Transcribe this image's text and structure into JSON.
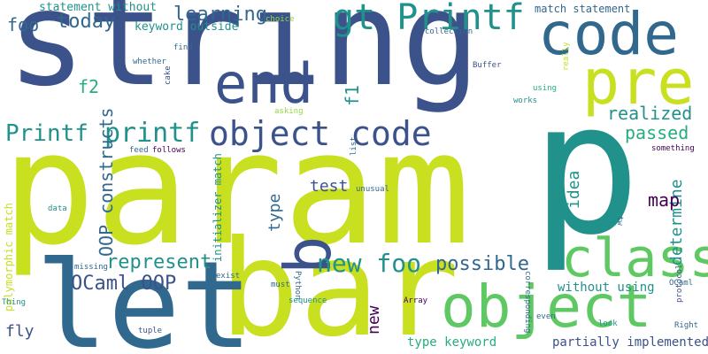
{
  "words": [
    "string",
    "param",
    "bar",
    "let",
    "p",
    "code",
    "end",
    "pre",
    "object",
    "class",
    "gt Printf",
    "b",
    "object code",
    "Printf",
    "printf",
    "new foo",
    "possible",
    "represent",
    "OCaml OOP",
    "learning",
    "today",
    "foo",
    "f1",
    "f2",
    "OOP constructs",
    "realized",
    "passed",
    "determine",
    "map",
    "idea",
    "type",
    "test",
    "new",
    "fly",
    "type keyword",
    "partially implemented",
    "without using",
    "statement without",
    "keyword outside",
    "match statement",
    "initializer match",
    "polymorphic match",
    "choice",
    "find",
    "collection",
    "whether",
    "cake",
    "Buffer",
    "really",
    "using",
    "works",
    "asking",
    "something",
    "feed",
    "follows",
    "list",
    "unusual",
    "data",
    "Python",
    "missing",
    "exist",
    "corresponding",
    "sequence",
    "Array",
    "even",
    "Thing",
    "tuple",
    "look",
    "Right",
    "protocol",
    "OCaml",
    "tw",
    "must"
  ],
  "colors": {
    "background": "#ffffff",
    "palette": [
      "#3b528b",
      "#21918c",
      "#5ec962",
      "#c8e020",
      "#31688e",
      "#440154",
      "#27ad81",
      "#94d840"
    ]
  }
}
